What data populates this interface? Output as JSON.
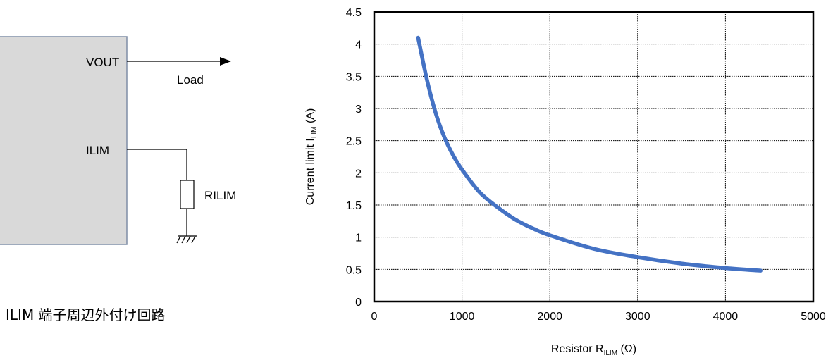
{
  "circuit": {
    "pins": {
      "vout": "VOUT",
      "ilim": "ILIM"
    },
    "load_label": "Load",
    "resistor_label": "RILIM",
    "caption": "ILIM 端子周辺外付け回路"
  },
  "chart_data": {
    "type": "line",
    "xlabel": {
      "main": "Resistor R",
      "sub": "ILIM",
      "suffix": " (Ω)"
    },
    "ylabel": {
      "main": "Current limit I",
      "sub": "LIM",
      "suffix": " (A)"
    },
    "xlim": [
      0,
      5000
    ],
    "ylim": [
      0,
      4.5
    ],
    "x_ticks": [
      0,
      1000,
      2000,
      3000,
      4000,
      5000
    ],
    "y_ticks": [
      0,
      0.5,
      1,
      1.5,
      2,
      2.5,
      3,
      3.5,
      4,
      4.5
    ],
    "x_tick_labels": [
      "0",
      "1000",
      "2000",
      "3000",
      "4000",
      "5000"
    ],
    "y_tick_labels": [
      "0",
      "0.5",
      "1",
      "1.5",
      "2",
      "2.5",
      "3",
      "3.5",
      "4",
      "4.5"
    ],
    "grid": true,
    "series": [
      {
        "color": "#4472c4",
        "x": [
          500,
          600,
          700,
          800,
          900,
          1000,
          1200,
          1400,
          1600,
          1800,
          2000,
          2500,
          3000,
          3500,
          4000,
          4400
        ],
        "y": [
          4.1,
          3.45,
          2.93,
          2.55,
          2.27,
          2.05,
          1.7,
          1.47,
          1.28,
          1.14,
          1.03,
          0.82,
          0.69,
          0.59,
          0.52,
          0.48
        ]
      }
    ]
  }
}
